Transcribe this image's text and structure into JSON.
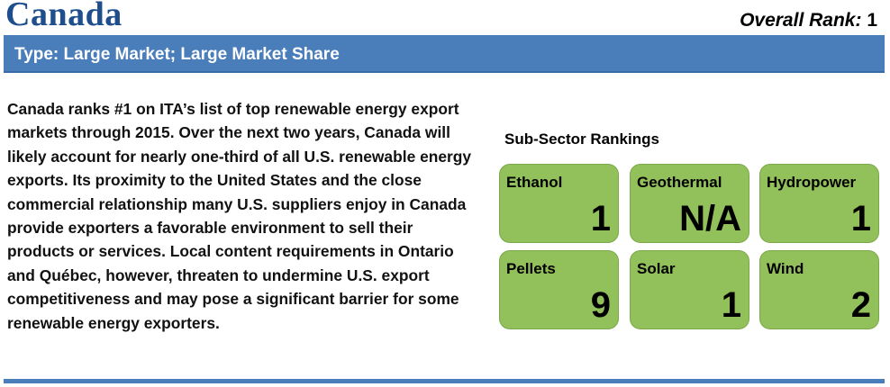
{
  "header": {
    "country": "Canada",
    "overall_rank_label": "Overall Rank:",
    "overall_rank_value": "1"
  },
  "type_bar": {
    "text": "Type: Large Market; Large Market Share"
  },
  "description": "Canada ranks #1 on ITA’s list of top renewable energy export markets through 2015.  Over the next two years, Canada will likely account for nearly one-third of all U.S. renewable energy exports. Its proximity to the United States and the close commercial relationship many U.S. suppliers enjoy in Canada provide exporters a favorable environment to sell their products or services. Local content requirements in Ontario and Québec, however, threaten to undermine U.S. export competitiveness and may pose a significant barrier for some renewable energy exporters.",
  "sub_sector": {
    "title": "Sub-Sector Rankings",
    "items": [
      {
        "name": "Ethanol",
        "rank": "1"
      },
      {
        "name": "Geothermal",
        "rank": "N/A"
      },
      {
        "name": "Hydropower",
        "rank": "1"
      },
      {
        "name": "Pellets",
        "rank": "9"
      },
      {
        "name": "Solar",
        "rank": "1"
      },
      {
        "name": "Wind",
        "rank": "2"
      }
    ]
  },
  "colors": {
    "title": "#1f4e8c",
    "bar": "#4a7ebb",
    "tile": "#92c05a"
  }
}
